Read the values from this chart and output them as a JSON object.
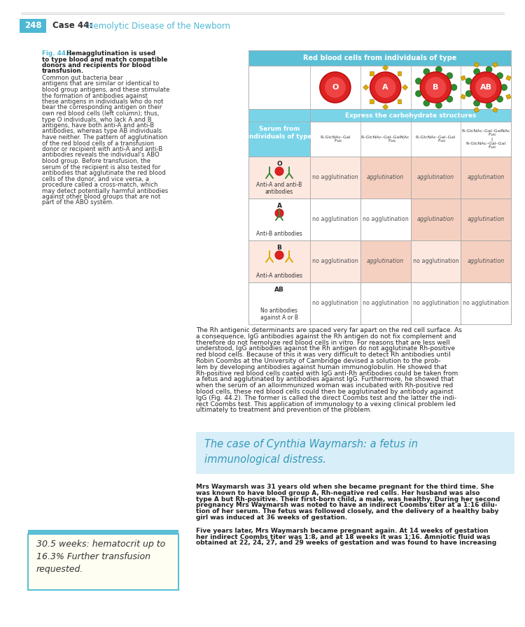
{
  "page_bg": "#ffffff",
  "badge_color": "#4db8d4",
  "page_num": "248",
  "case_bold": "Case 44:",
  "case_rest": " Hemolytic Disease of the Newborn",
  "fig_label": "Fig. 44.1",
  "fig_bold_lines": [
    "Hemagglutination is used",
    "to type blood and match compatible",
    "donors and recipients for blood",
    "transfusion."
  ],
  "fig_body_lines": [
    "Common gut bacteria bear",
    "antigens that are similar or identical to",
    "blood group antigens, and these stimulate",
    "the formation of antibodies against",
    "these antigens in individuals who do not",
    "bear the corresponding antigen on their",
    "own red blood cells (left column); thus,",
    "type O individuals, who lack A and B",
    "antigens, have both anti-A and anti-B",
    "antibodies, whereas type AB individuals",
    "have neither. The pattern of agglutination",
    "of the red blood cells of a transfusion",
    "donor or recipient with anti-A and anti-B",
    "antibodies reveals the individual's ABO",
    "blood group. Before transfusion, the",
    "serum of the recipient is also tested for",
    "antibodies that agglutinate the red blood",
    "cells of the donor, and vice versa, a",
    "procedure called a cross-match, which",
    "may detect potentially harmful antibodies",
    "against other blood groups that are not",
    "part of the ABO system."
  ],
  "tbl_hdr_bg": "#5bbfd6",
  "tbl_subhdr_bg": "#7ad4e8",
  "tbl_serum_bg": "#7ad4e8",
  "tbl_border": "#aaaaaa",
  "tbl_agg_bg": "#f5d0c0",
  "tbl_alt_bg": "#fde8e0",
  "tbl_white": "#ffffff",
  "col_header": "Red blood cells from individuals of type",
  "col_subhdr": "Express the carbohydrate structures",
  "serum_lbl": "Serum from\nindividuals of type",
  "blood_types": [
    "O",
    "A",
    "B",
    "AB"
  ],
  "chem_O": "R–GlcNAc–Gal\n     Fuc",
  "chem_A": "R–GlcNAc–Gal–GalNAc\n          Fuc",
  "chem_B": "R–GlcNAc–Gal–Gal\n         Fuc",
  "chem_AB": "R–GlcNAc–Gal–GalNAc\n         Fuc\n         |\nR–GlcNAc–Gal–Gal\n         Fuc",
  "row_types": [
    "O",
    "A",
    "B",
    "AB"
  ],
  "row_antibodies": [
    "Anti-A and anti-B\nantibodies",
    "Anti-B antibodies",
    "Anti-A antibodies",
    "No antibodies\nagainst A or B"
  ],
  "agg": [
    [
      "no agglutination",
      "agglutination",
      "agglutination",
      "agglutination"
    ],
    [
      "no agglutination",
      "no agglutination",
      "agglutination",
      "agglutination"
    ],
    [
      "no agglutination",
      "agglutination",
      "no agglutination",
      "agglutination"
    ],
    [
      "no agglutination",
      "no agglutination",
      "no agglutination",
      "no agglutination"
    ]
  ],
  "rh_lines": [
    "The Rh antigenic determinants are spaced very far apart on the red cell surface. As",
    "a consequence, IgG antibodies against the Rh antigen do not fix complement and",
    "therefore do not hemolyze red blood cells in vitro. For reasons that are less well",
    "understood, IgG antibodies against the Rh antigen do not agglutinate Rh-positive",
    "red blood cells. Because of this it was very difficult to detect Rh antibodies until",
    "Robin Coombs at the University of Cambridge devised a solution to the prob-",
    "lem by developing antibodies against human immunoglobulin. He showed that",
    "Rh-positive red blood cells coated with IgG anti-Rh antibodies could be taken from",
    "a fetus and agglutinated by antibodies against IgG. Furthermore, he showed that",
    "when the serum of an alloimmunized woman was incubated with Rh-positive red",
    "blood cells, these red blood cells could then be agglutinated by antibody against",
    "IgG (Fig. 44.2). The former is called the direct Coombs test and the latter the indi-",
    "rect Coombs test. This application of immunology to a vexing clinical problem led",
    "ultimately to treatment and prevention of the problem."
  ],
  "case_box_bg": "#d8eef8",
  "case_box_color": "#3399bb",
  "case_box_line1": "The case of Cynthia Waymarsh: a fetus in",
  "case_box_line2": "immunological distress.",
  "body1_lines": [
    "Mrs Waymarsh was 31 years old when she became pregnant for the third time. She",
    "was known to have blood group A, Rh-negative red cells. Her husband was also",
    "type A but Rh-positive. Their first-born child, a male, was healthy. During her second",
    "pregnancy Mrs Waymarsh was noted to have an indirect Coombs titer at a 1:16 dilu-",
    "tion of her serum. The fetus was followed closely, and the delivery of a healthy baby",
    "girl was induced at 36 weeks of gestation."
  ],
  "body2_lines": [
    "Five years later, Mrs Waymarsh became pregnant again. At 14 weeks of gestation",
    "her indirect Coombs titer was 1:8, and at 18 weeks it was 1:16. Amniotic fluid was",
    "obtained at 22, 24, 27, and 29 weeks of gestation and was found to have increasing"
  ],
  "note_line1": "30.5 weeks: hematocrit up to",
  "note_line2": "16.3% Further transfusion",
  "note_line3": "requested.",
  "note_bg": "#fefef2",
  "note_top_color": "#5bbfd6",
  "note_border_color": "#5bbfd6"
}
